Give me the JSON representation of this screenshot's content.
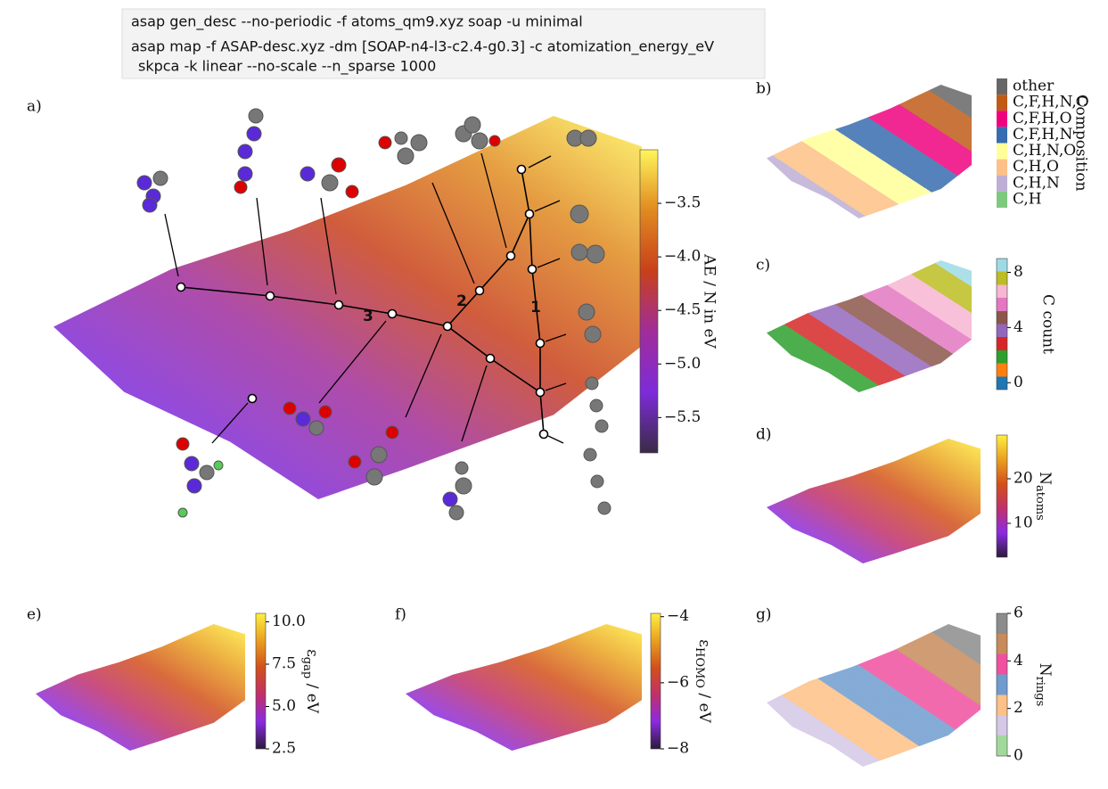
{
  "command": [
    "asap gen_desc --no-periodic -f atoms_qm9.xyz soap -u minimal",
    "asap map -f ASAP-desc.xyz -dm [SOAP-n4-l3-c2.4-g0.3] -c atomization_energy_eV",
    "skpca -k linear --no-scale --n_sparse 1000"
  ],
  "chart_data": [
    {
      "type": "scatter",
      "panel_label": "a)",
      "annotations": [
        "1",
        "2",
        "3"
      ],
      "colorbar": {
        "label": "AE / N in eV",
        "lim": [
          -5.83,
          -3.0
        ],
        "colors": [
          "#3a2b45",
          "#7e2bd9",
          "#a02d9a",
          "#c8401a",
          "#e08a20",
          "#fff55a"
        ],
        "ticks": [
          {
            "value": -3.5,
            "label": "−3.5"
          },
          {
            "value": -4.0,
            "label": "−4.0"
          },
          {
            "value": -4.5,
            "label": "−4.5"
          },
          {
            "value": -5.0,
            "label": "−5.0"
          },
          {
            "value": -5.5,
            "label": "−5.5"
          }
        ]
      }
    },
    {
      "type": "scatter",
      "panel_label": "b)",
      "colorbar": {
        "label": "Composition",
        "categories": [
          "other",
          "C,F,H,N,O",
          "C,F,H,O",
          "C,F,H,N",
          "C,H,N,O",
          "C,H,O",
          "C,H,N",
          "C,H"
        ],
        "colors": [
          "#666666",
          "#bf5b17",
          "#f0027f",
          "#386cb0",
          "#ffff99",
          "#fdc086",
          "#beaed4",
          "#7fc97f"
        ]
      }
    },
    {
      "type": "scatter",
      "panel_label": "c)",
      "colorbar": {
        "label": "C count",
        "lim": [
          -0.5,
          9
        ],
        "discrete": true,
        "colors": [
          "#1f77b4",
          "#ff7f0e",
          "#2ca02c",
          "#d62728",
          "#9467bd",
          "#8c564b",
          "#e377c2",
          "#f7b6d2",
          "#bcbd22",
          "#9edae5"
        ],
        "ticks": [
          0,
          4,
          8
        ]
      }
    },
    {
      "type": "scatter",
      "panel_label": "d)",
      "colorbar": {
        "label": {
          "text": "N",
          "sub": "atoms"
        },
        "lim": [
          2.4,
          29.8
        ],
        "colors": [
          "#2a1a3a",
          "#8a2be2",
          "#c0306a",
          "#d2501a",
          "#e9a020",
          "#ffee40"
        ],
        "ticks": [
          10,
          20
        ]
      }
    },
    {
      "type": "scatter",
      "panel_label": "e)",
      "colorbar": {
        "label": {
          "text": "ε",
          "sub": "gap",
          "rest": " / eV"
        },
        "lim": [
          2.5,
          10.5
        ],
        "colors": [
          "#2a1a3a",
          "#8a2be2",
          "#c0306a",
          "#d2501a",
          "#e9a020",
          "#ffee40"
        ],
        "ticks": [
          {
            "value": 10,
            "label": "10.0"
          },
          7.5,
          {
            "value": 5,
            "label": "5.0"
          },
          2.5
        ]
      }
    },
    {
      "type": "scatter",
      "panel_label": "f)",
      "colorbar": {
        "label": {
          "text": "ε",
          "sub": "HOMO",
          "rest": " / eV"
        },
        "lim": [
          -8,
          -3.9
        ],
        "colors": [
          "#2a1a3a",
          "#8a2be2",
          "#c0306a",
          "#d2501a",
          "#e9a020",
          "#ffee40"
        ],
        "ticks": [
          {
            "value": -4,
            "label": "−4"
          },
          {
            "value": -6,
            "label": "−6"
          },
          {
            "value": -8,
            "label": "−8"
          }
        ]
      }
    },
    {
      "type": "scatter",
      "panel_label": "g)",
      "colorbar": {
        "label": {
          "text": "N",
          "sub": "rings"
        },
        "lim": [
          0,
          6
        ],
        "discrete": true,
        "colors": [
          "#a1d99b",
          "#d4c8e6",
          "#fdc086",
          "#6f9ccf",
          "#f0509f",
          "#c88a5a",
          "#8c8c8c"
        ],
        "ticks": [
          0,
          2,
          4,
          6
        ]
      }
    }
  ]
}
